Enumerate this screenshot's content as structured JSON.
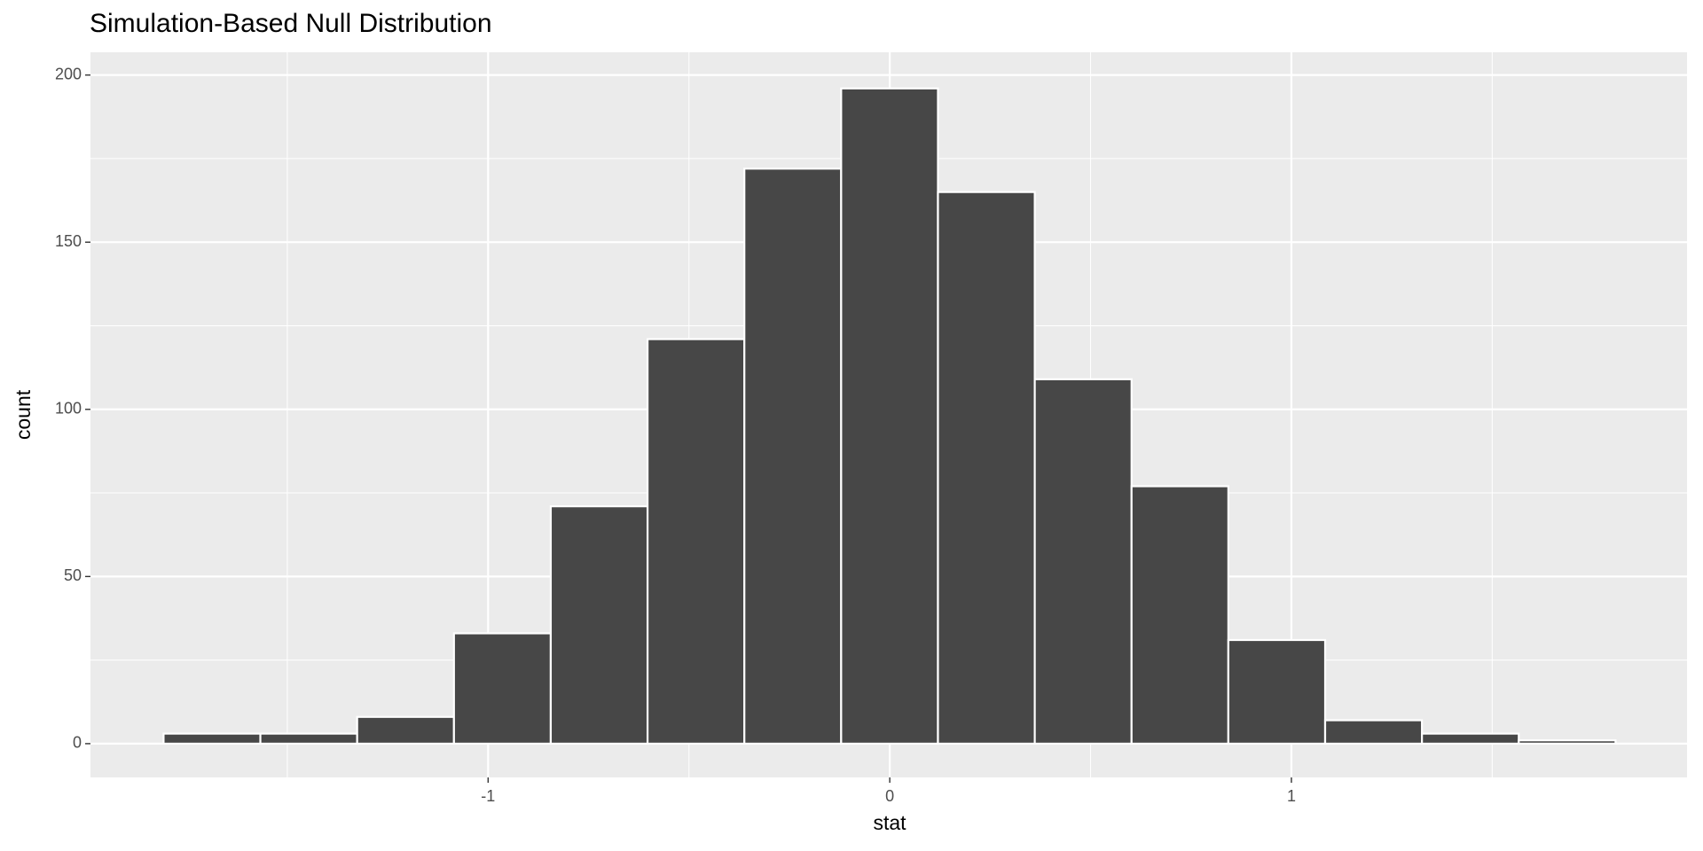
{
  "chart_data": {
    "type": "histogram",
    "title": "Simulation-Based Null Distribution",
    "x_label": "stat",
    "y_label": "count",
    "bins": [
      -1.808,
      -1.567,
      -1.326,
      -1.085,
      -0.844,
      -0.603,
      -0.362,
      -0.121,
      0.12,
      0.361,
      0.602,
      0.843,
      1.084,
      1.325,
      1.566,
      1.807
    ],
    "values": [
      3,
      3,
      8,
      33,
      71,
      121,
      172,
      196,
      165,
      109,
      77,
      31,
      7,
      3,
      1
    ],
    "color": "#474747",
    "xlim": [
      -1.99,
      1.985
    ],
    "ylim": [
      -10.1,
      206.8
    ],
    "xticks": [
      -1,
      0,
      1
    ],
    "yticks": [
      0,
      50,
      100,
      150,
      200
    ],
    "minor_xticks": [
      -1.5,
      -0.5,
      0.5,
      1.5
    ],
    "minor_yticks": [
      25,
      75,
      125,
      175
    ],
    "grid": true
  }
}
